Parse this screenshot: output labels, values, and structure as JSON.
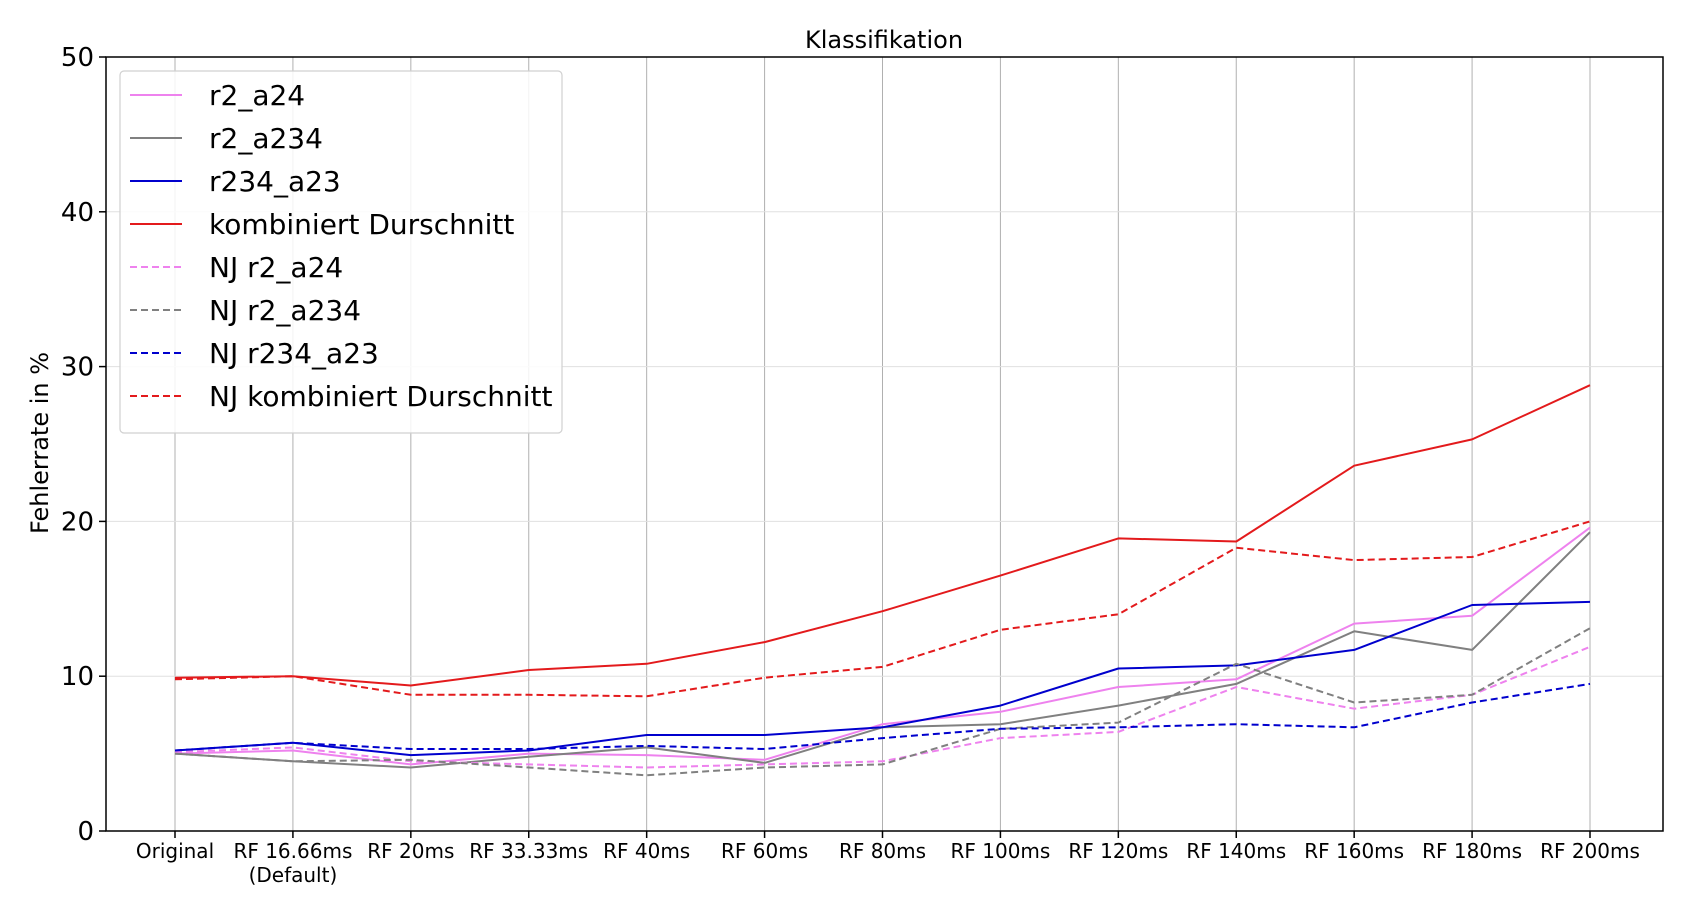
{
  "chart_data": {
    "type": "line",
    "title": "Klassifikation",
    "xlabel": "",
    "ylabel": "Fehlerrate in %",
    "ylim": [
      0,
      50
    ],
    "yticks": [
      0,
      10,
      20,
      30,
      40,
      50
    ],
    "grid": true,
    "legend_position": "top-left",
    "categories": [
      "Original",
      "RF 16.66ms\n(Default)",
      "RF 20ms",
      "RF 33.33ms",
      "RF 40ms",
      "RF 60ms",
      "RF 80ms",
      "RF 100ms",
      "RF 120ms",
      "RF 140ms",
      "RF 160ms",
      "RF 180ms",
      "RF 200ms"
    ],
    "series": [
      {
        "name": "r2_a24",
        "color": "#ee82ee",
        "dashed": false,
        "values": [
          5.0,
          5.2,
          4.3,
          5.0,
          4.9,
          4.6,
          6.9,
          7.7,
          9.3,
          9.8,
          13.4,
          13.9,
          19.6
        ]
      },
      {
        "name": "r2_a234",
        "color": "#808080",
        "dashed": false,
        "values": [
          5.0,
          4.5,
          4.1,
          4.8,
          5.4,
          4.4,
          6.7,
          6.9,
          8.1,
          9.5,
          12.9,
          11.7,
          19.3
        ]
      },
      {
        "name": "r234_a23",
        "color": "#0000cd",
        "dashed": false,
        "values": [
          5.2,
          5.7,
          4.9,
          5.2,
          6.2,
          6.2,
          6.7,
          8.1,
          10.5,
          10.7,
          11.7,
          14.6,
          14.8
        ]
      },
      {
        "name": "kombiniert Durschnitt",
        "color": "#e31a1c",
        "dashed": false,
        "values": [
          9.9,
          10.0,
          9.4,
          10.4,
          10.8,
          12.2,
          14.2,
          16.5,
          18.9,
          18.7,
          23.6,
          25.3,
          28.8
        ]
      },
      {
        "name": "NJ r2_a24",
        "color": "#ee82ee",
        "dashed": true,
        "values": [
          5.1,
          5.4,
          4.5,
          4.3,
          4.1,
          4.3,
          4.5,
          6.0,
          6.4,
          9.3,
          7.9,
          8.8,
          11.9
        ]
      },
      {
        "name": "NJ r2_a234",
        "color": "#808080",
        "dashed": true,
        "values": [
          5.0,
          4.5,
          4.6,
          4.1,
          3.6,
          4.1,
          4.3,
          6.6,
          7.0,
          10.8,
          8.3,
          8.8,
          13.1
        ]
      },
      {
        "name": "NJ r234_a23",
        "color": "#0000cd",
        "dashed": true,
        "values": [
          5.2,
          5.7,
          5.3,
          5.3,
          5.5,
          5.3,
          6.0,
          6.6,
          6.7,
          6.9,
          6.7,
          8.3,
          9.5
        ]
      },
      {
        "name": "NJ kombiniert Durschnitt",
        "color": "#e31a1c",
        "dashed": true,
        "values": [
          9.8,
          10.0,
          8.8,
          8.8,
          8.7,
          9.9,
          10.6,
          13.0,
          14.0,
          18.3,
          17.5,
          17.7,
          20.0
        ]
      }
    ]
  }
}
